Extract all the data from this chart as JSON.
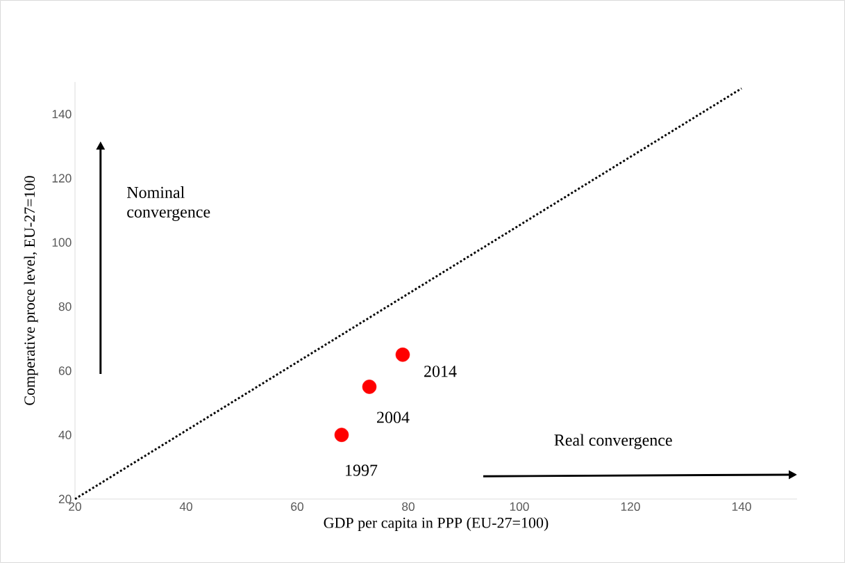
{
  "chart_data": {
    "type": "scatter",
    "xlabel": "GDP per capita in PPP (EU-27=100)",
    "ylabel": "Comperative proce level, EU-27=100",
    "xlim": [
      20,
      150
    ],
    "ylim": [
      20,
      150
    ],
    "xticks": [
      20,
      40,
      60,
      80,
      100,
      120,
      140
    ],
    "yticks": [
      20,
      40,
      60,
      80,
      100,
      120,
      140
    ],
    "grid": false,
    "series": [
      {
        "color": "#ff0000",
        "marker": "circle",
        "x": [
          68,
          73,
          79
        ],
        "values": [
          40,
          55,
          65
        ]
      },
      {
        "type": "line",
        "color": "#000000",
        "line_style": "dotted",
        "marker": "none",
        "x": [
          20,
          140
        ],
        "values": [
          20,
          148
        ]
      }
    ],
    "annotations": [
      {
        "text": "1997",
        "x": 68,
        "y": 40
      },
      {
        "text": "2004",
        "x": 73,
        "y": 55
      },
      {
        "text": "2014",
        "x": 79,
        "y": 65
      },
      "Nominal convergence",
      "Real convergence"
    ]
  }
}
